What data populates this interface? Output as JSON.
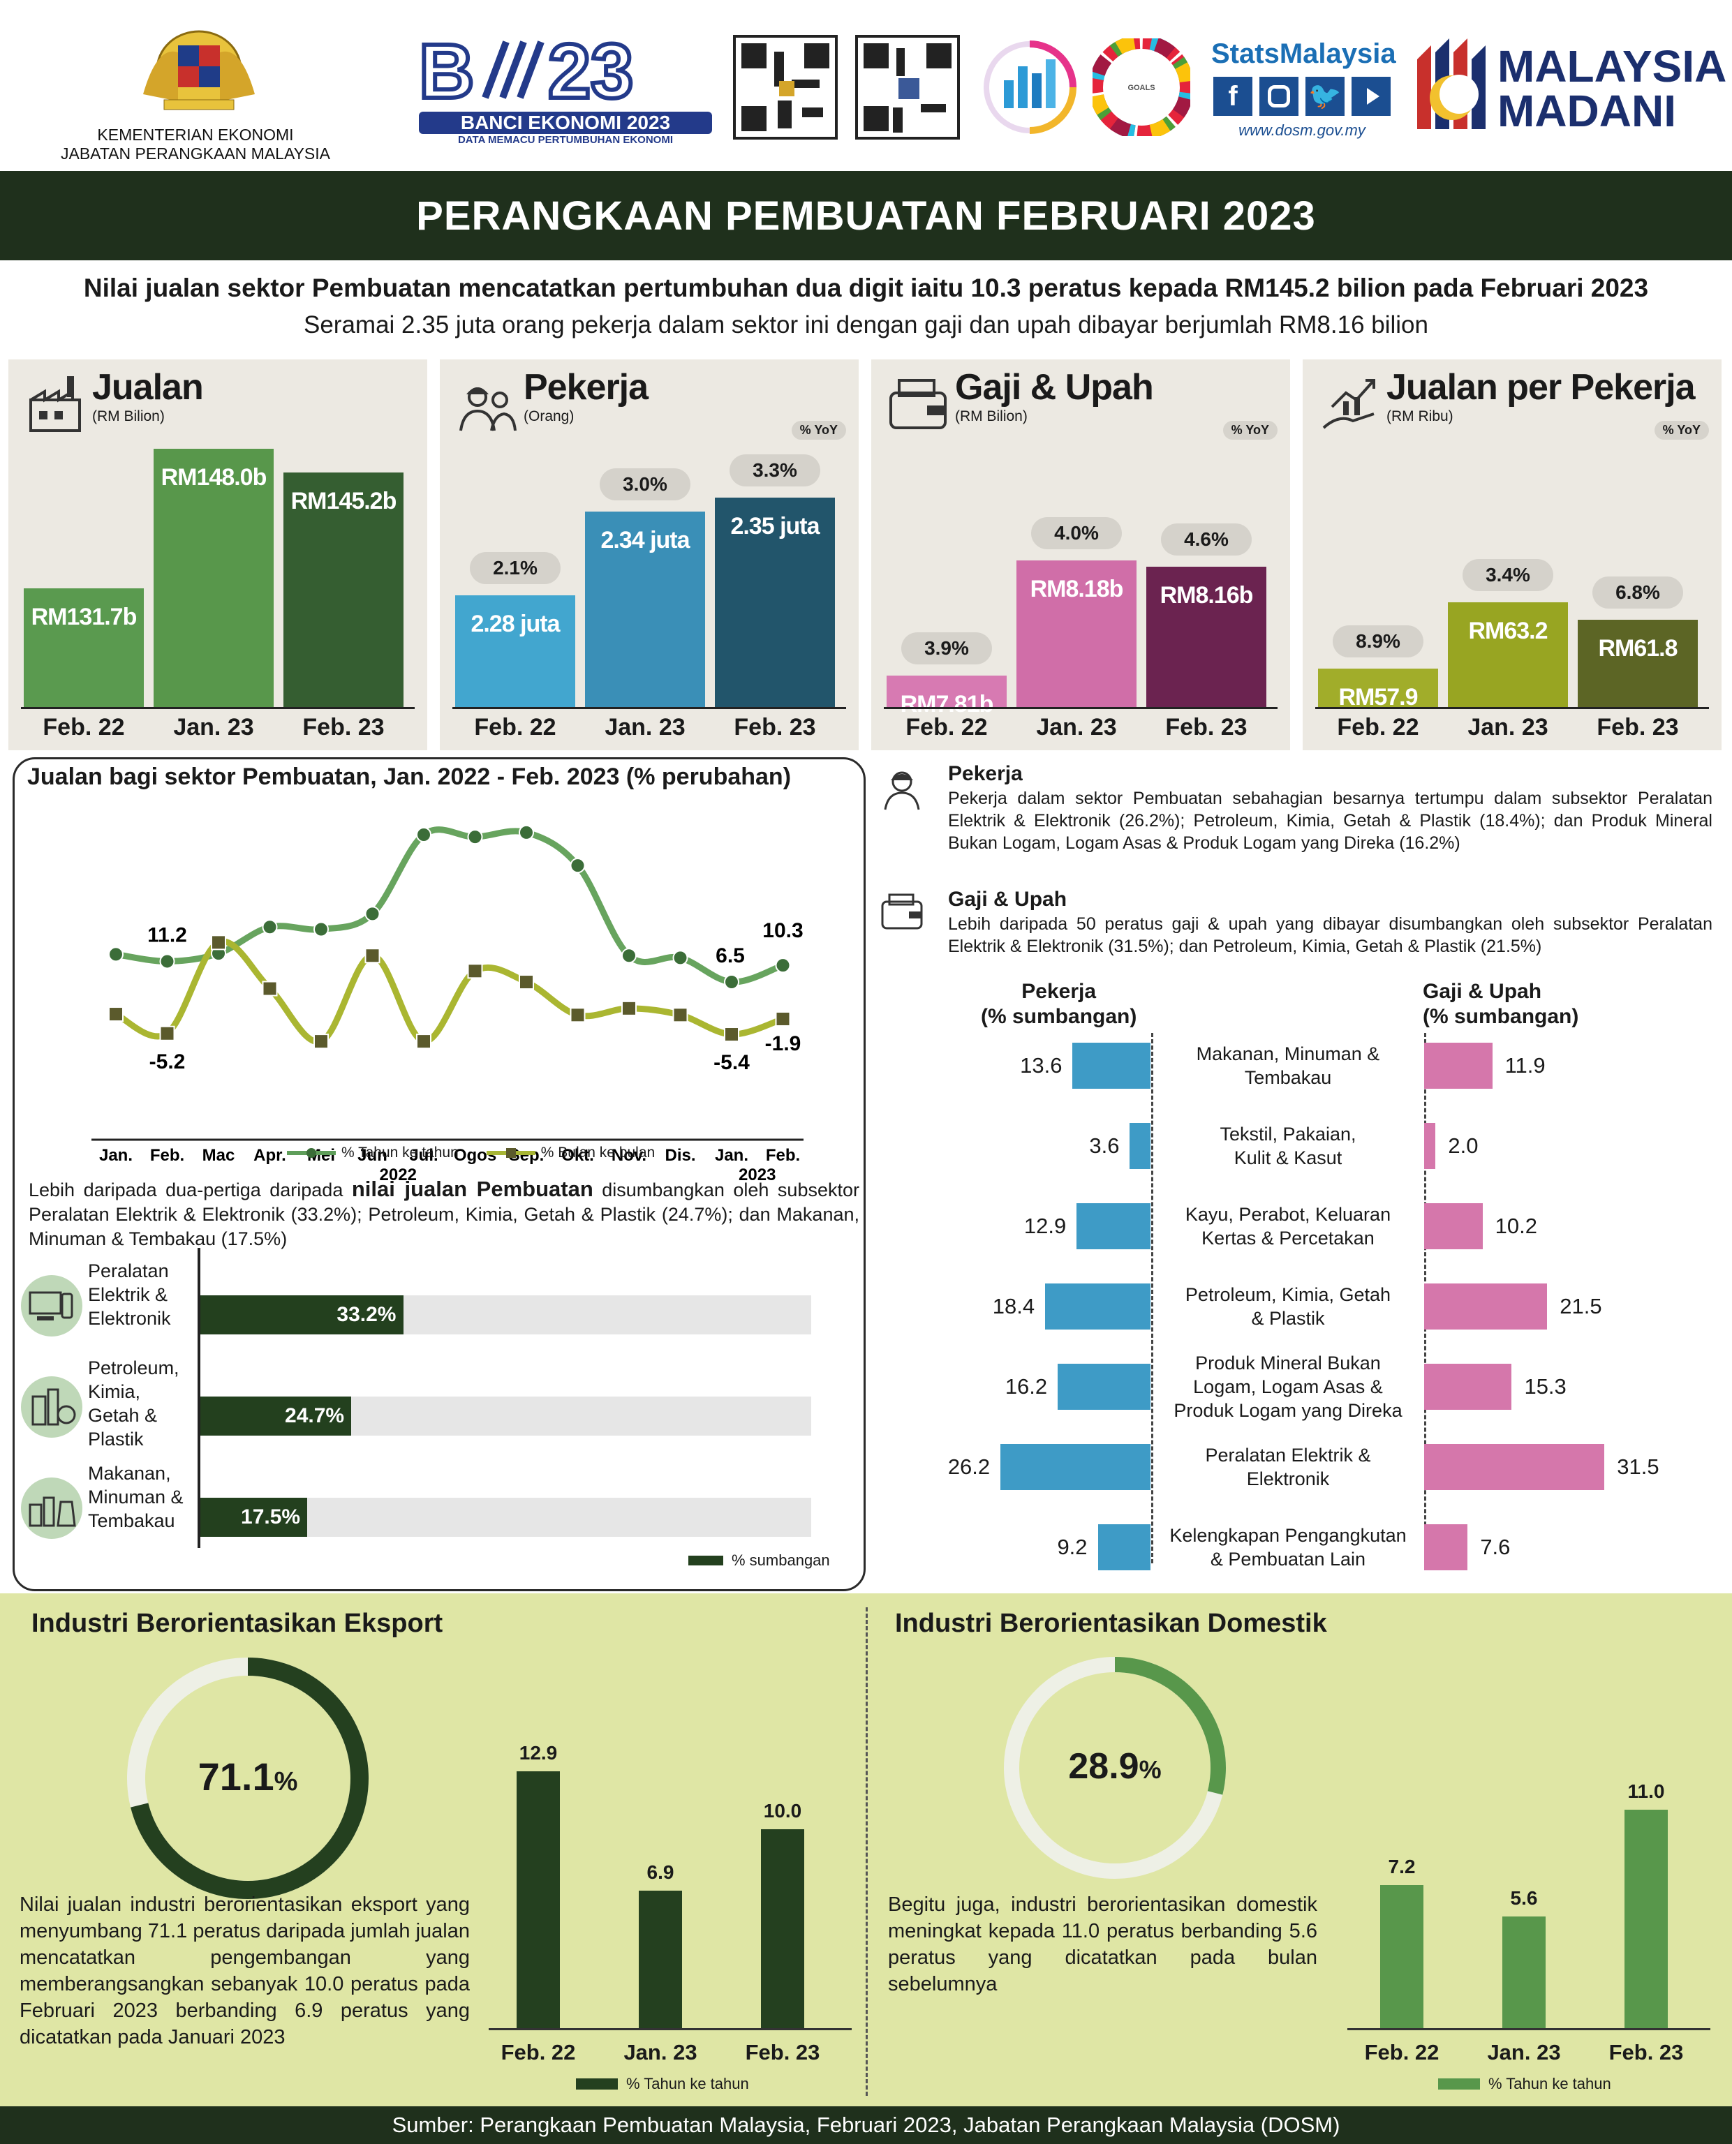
{
  "header": {
    "ministry_line1": "KEMENTERIAN EKONOMI",
    "ministry_line2": "JABATAN PERANGKAAN MALAYSIA",
    "banci_title": "BANCI EKONOMI 2023",
    "banci_tagline": "DATA MEMACU PERTUMBUHAN EKONOMI",
    "stats_brand": "StatsMalaysia",
    "stats_url": "www.dosm.gov.my",
    "madani_line1": "MALAYSIA",
    "madani_line2": "MADANI"
  },
  "title": "PERANGKAAN PEMBUATAN FEBRUARI 2023",
  "subtitle_bold": "Nilai jualan sektor Pembuatan mencatatkan pertumbuhan dua digit iaitu 10.3 peratus kepada RM145.2 bilion pada Februari 2023",
  "subtitle": "Seramai 2.35 juta orang pekerja dalam sektor ini dengan gaji dan upah dibayar berjumlah RM8.16 bilion",
  "kpis": [
    {
      "title": "Jualan",
      "unit": "(RM Bilion)",
      "yoy_tag": "",
      "categories": [
        "Feb. 22",
        "Jan. 23",
        "Feb. 23"
      ],
      "values": [
        131.7,
        148.0,
        145.2
      ],
      "labels": [
        "RM131.7b",
        "RM148.0b",
        "RM145.2b"
      ],
      "yoy": [
        "",
        "",
        ""
      ],
      "colors": [
        "#5a9a4f",
        "#58974b",
        "#355e31"
      ]
    },
    {
      "title": "Pekerja",
      "unit": "(Orang)",
      "yoy_tag": "% YoY",
      "categories": [
        "Feb. 22",
        "Jan. 23",
        "Feb. 23"
      ],
      "values": [
        2.28,
        2.34,
        2.35
      ],
      "labels": [
        "2.28 juta",
        "2.34 juta",
        "2.35 juta"
      ],
      "yoy": [
        "2.1%",
        "3.0%",
        "3.3%"
      ],
      "colors": [
        "#42a6cf",
        "#3a8fb7",
        "#22556b"
      ]
    },
    {
      "title": "Gaji & Upah",
      "unit": "(RM Bilion)",
      "yoy_tag": "% YoY",
      "categories": [
        "Feb. 22",
        "Jan. 23",
        "Feb. 23"
      ],
      "values": [
        7.81,
        8.18,
        8.16
      ],
      "labels": [
        "RM7.81b",
        "RM8.18b",
        "RM8.16b"
      ],
      "yoy": [
        "3.9%",
        "4.0%",
        "4.6%"
      ],
      "colors": [
        "#d77ab2",
        "#d06ea8",
        "#6b2350"
      ]
    },
    {
      "title": "Jualan per Pekerja",
      "unit": "(RM Ribu)",
      "yoy_tag": "% YoY",
      "categories": [
        "Feb. 22",
        "Jan. 23",
        "Feb. 23"
      ],
      "values": [
        57.9,
        63.2,
        61.8
      ],
      "labels": [
        "RM57.9",
        "RM63.2",
        "RM61.8"
      ],
      "yoy": [
        "8.9%",
        "3.4%",
        "6.8%"
      ],
      "colors": [
        "#a1ad2a",
        "#98a522",
        "#5c6525"
      ]
    }
  ],
  "line_chart": {
    "title": "Jualan bagi sektor Pembuatan,  Jan. 2022 - Feb. 2023 (% perubahan)",
    "months": [
      "Jan.",
      "Feb.",
      "Mac",
      "Apr.",
      "Mei",
      "Jun",
      "Jul.",
      "Ogos",
      "Sep.",
      "Okt.",
      "Nov.",
      "Dis.",
      "Jan.",
      "Feb."
    ],
    "year_labels": [
      "2022",
      "2023"
    ],
    "yoy_name": "% Tahun ke tahun",
    "mom_name": "% Bulan ke bulan",
    "yoy_labels": {
      "feb22": "11.2",
      "jan23": "6.5",
      "feb23": "10.3"
    },
    "mom_labels": {
      "feb22": "-5.2",
      "jan23": "-5.4",
      "feb23": "-1.9"
    }
  },
  "chart_data": [
    {
      "type": "bar",
      "title": "Jualan",
      "ylabel": "(RM Bilion)",
      "categories": [
        "Feb. 22",
        "Jan. 23",
        "Feb. 23"
      ],
      "values": [
        131.7,
        148.0,
        145.2
      ]
    },
    {
      "type": "bar",
      "title": "Pekerja",
      "ylabel": "(Orang)",
      "categories": [
        "Feb. 22",
        "Jan. 23",
        "Feb. 23"
      ],
      "series": [
        {
          "name": "Pekerja",
          "values": [
            2.28,
            2.34,
            2.35
          ]
        },
        {
          "name": "% YoY",
          "values": [
            2.1,
            3.0,
            3.3
          ]
        }
      ]
    },
    {
      "type": "bar",
      "title": "Gaji & Upah",
      "ylabel": "(RM Bilion)",
      "categories": [
        "Feb. 22",
        "Jan. 23",
        "Feb. 23"
      ],
      "series": [
        {
          "name": "Gaji & Upah",
          "values": [
            7.81,
            8.18,
            8.16
          ]
        },
        {
          "name": "% YoY",
          "values": [
            3.9,
            4.0,
            4.6
          ]
        }
      ]
    },
    {
      "type": "bar",
      "title": "Jualan per Pekerja",
      "ylabel": "(RM Ribu)",
      "categories": [
        "Feb. 22",
        "Jan. 23",
        "Feb. 23"
      ],
      "series": [
        {
          "name": "Jualan per Pekerja",
          "values": [
            57.9,
            63.2,
            61.8
          ]
        },
        {
          "name": "% YoY",
          "values": [
            8.9,
            3.4,
            6.8
          ]
        }
      ]
    },
    {
      "type": "line",
      "title": "Jualan bagi sektor Pembuatan,  Jan. 2022 - Feb. 2023 (% perubahan)",
      "x": [
        "Jan.",
        "Feb.",
        "Mac",
        "Apr.",
        "Mei",
        "Jun",
        "Jul.",
        "Ogos",
        "Sep.",
        "Okt.",
        "Nov.",
        "Dis.",
        "Jan.",
        "Feb."
      ],
      "series": [
        {
          "name": "% Tahun ke tahun",
          "values": [
            12.8,
            11.2,
            13.0,
            19.0,
            18.5,
            22.0,
            40.0,
            39.5,
            40.5,
            33.0,
            12.5,
            12.0,
            6.5,
            10.3
          ]
        },
        {
          "name": "% Bulan ke bulan",
          "values": [
            -0.8,
            -5.2,
            15.5,
            5.0,
            -7.0,
            12.5,
            -7.0,
            9.0,
            6.5,
            -1.0,
            0.5,
            -1.0,
            -5.4,
            -1.9
          ]
        }
      ]
    },
    {
      "type": "bar",
      "title": "% sumbangan",
      "categories": [
        "Peralatan Elektrik & Elektronik",
        "Petroleum, Kimia, Getah & Plastik",
        "Makanan, Minuman & Tembakau"
      ],
      "values": [
        33.2,
        24.7,
        17.5
      ],
      "xlim": [
        0,
        100
      ]
    },
    {
      "type": "bar",
      "title": "Pekerja (% sumbangan) / Gaji & Upah (% sumbangan)",
      "categories": [
        "Makanan, Minuman & Tembakau",
        "Tekstil, Pakaian, Kulit & Kasut",
        "Kayu, Perabot, Keluaran Kertas & Percetakan",
        "Petroleum, Kimia, Getah & Plastik",
        "Produk Mineral Bukan Logam, Logam Asas & Produk Logam yang Direka",
        "Peralatan Elektrik & Elektronik",
        "Kelengkapan Pengangkutan & Pembuatan Lain"
      ],
      "series": [
        {
          "name": "Pekerja",
          "values": [
            13.6,
            3.6,
            12.9,
            18.4,
            16.2,
            26.2,
            9.2
          ]
        },
        {
          "name": "Gaji & Upah",
          "values": [
            11.9,
            2.0,
            10.2,
            21.5,
            15.3,
            31.5,
            7.6
          ]
        }
      ]
    },
    {
      "type": "pie",
      "title": "Industri Berorientasikan Eksport",
      "values": [
        71.1
      ]
    },
    {
      "type": "bar",
      "title": "Industri Berorientasikan Eksport",
      "categories": [
        "Feb. 22",
        "Jan. 23",
        "Feb. 23"
      ],
      "values": [
        12.9,
        6.9,
        10.0
      ],
      "ylabel": "% Tahun ke tahun"
    },
    {
      "type": "pie",
      "title": "Industri Berorientasikan Domestik",
      "values": [
        28.9
      ]
    },
    {
      "type": "bar",
      "title": "Industri Berorientasikan Domestik",
      "categories": [
        "Feb. 22",
        "Jan. 23",
        "Feb. 23"
      ],
      "values": [
        7.2,
        5.6,
        11.0
      ],
      "ylabel": "% Tahun ke tahun"
    }
  ],
  "contrib": {
    "para_pre": "Lebih daripada dua-pertiga daripada ",
    "para_bold": "nilai jualan Pembuatan",
    "para_post": " disumbangkan oleh subsektor Peralatan Elektrik & Elektronik (33.2%); Petroleum, Kimia, Getah & Plastik (24.7%); dan Makanan, Minuman & Tembakau (17.5%)",
    "items": [
      {
        "label": "Peralatan Elektrik & Elektronik",
        "value": 33.2,
        "text": "33.2%"
      },
      {
        "label": "Petroleum, Kimia, Getah & Plastik",
        "value": 24.7,
        "text": "24.7%"
      },
      {
        "label": "Makanan, Minuman & Tembakau",
        "value": 17.5,
        "text": "17.5%"
      }
    ],
    "legend": "% sumbangan"
  },
  "right": {
    "pekerja_head": "Pekerja",
    "pekerja_para": "Pekerja dalam sektor Pembuatan sebahagian besarnya tertumpu dalam subsektor Peralatan Elektrik & Elektronik (26.2%); Petroleum, Kimia, Getah & Plastik (18.4%); dan Produk Mineral Bukan Logam, Logam Asas & Produk Logam yang Direka (16.2%)",
    "gaji_head": "Gaji & Upah",
    "gaji_para": "Lebih daripada 50 peratus gaji & upah yang dibayar disumbangkan oleh subsektor Peralatan Elektrik & Elektronik (31.5%); dan Petroleum, Kimia, Getah & Plastik (21.5%)",
    "col_left": "Pekerja\n(% sumbangan)",
    "col_right": "Gaji & Upah\n(% sumbangan)",
    "rows": [
      {
        "cat": "Makanan, Minuman &\nTembakau",
        "left": 13.6,
        "right": 11.9
      },
      {
        "cat": "Tekstil, Pakaian,\nKulit & Kasut",
        "left": 3.6,
        "right": 2.0
      },
      {
        "cat": "Kayu, Perabot, Keluaran\nKertas & Percetakan",
        "left": 12.9,
        "right": 10.2
      },
      {
        "cat": "Petroleum, Kimia, Getah\n& Plastik",
        "left": 18.4,
        "right": 21.5
      },
      {
        "cat": "Produk Mineral Bukan\nLogam, Logam Asas &\nProduk Logam yang Direka",
        "left": 16.2,
        "right": 15.3
      },
      {
        "cat": "Peralatan Elektrik &\nElektronik",
        "left": 26.2,
        "right": 31.5
      },
      {
        "cat": "Kelengkapan Pengangkutan\n& Pembuatan Lain",
        "left": 9.2,
        "right": 7.6
      }
    ]
  },
  "export": {
    "title": "Industri Berorientasikan Eksport",
    "share": "71.1",
    "share_value": 71.1,
    "pct": "%",
    "para": "Nilai jualan industri berorientasikan eksport yang menyumbang 71.1 peratus daripada jumlah jualan mencatatkan pengembangan yang memberangsangkan sebanyak 10.0 peratus pada Februari 2023 berbanding 6.9 peratus yang dicatatkan pada Januari 2023",
    "categories": [
      "Feb. 22",
      "Jan. 23",
      "Feb. 23"
    ],
    "values": [
      12.9,
      6.9,
      10.0
    ],
    "labels": [
      "12.9",
      "6.9",
      "10.0"
    ],
    "legend": "% Tahun ke tahun"
  },
  "domestic": {
    "title": "Industri Berorientasikan Domestik",
    "share": "28.9",
    "share_value": 28.9,
    "pct": "%",
    "para": "Begitu juga, industri berorientasikan domestik meningkat kepada 11.0 peratus berbanding 5.6 peratus yang dicatatkan pada bulan sebelumnya",
    "categories": [
      "Feb. 22",
      "Jan. 23",
      "Feb. 23"
    ],
    "values": [
      7.2,
      5.6,
      11.0
    ],
    "labels": [
      "7.2",
      "5.6",
      "11.0"
    ],
    "legend": "% Tahun ke tahun"
  },
  "footer": "Sumber: Perangkaan Pembuatan Malaysia, Februari 2023, Jabatan Perangkaan Malaysia (DOSM)"
}
